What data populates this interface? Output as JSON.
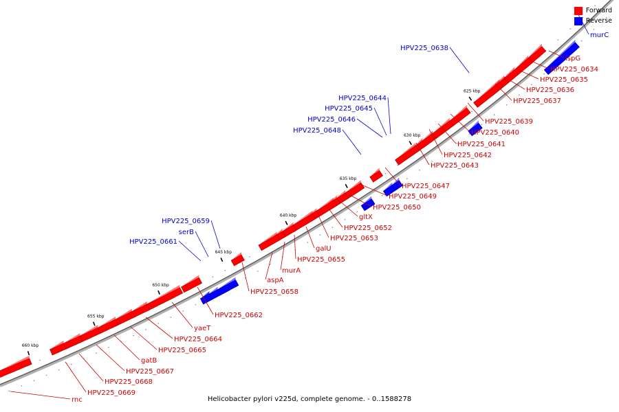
{
  "caption": "Helicobacter pylori v225d, complete genome. - 0..1588278",
  "legend": {
    "forward": {
      "label": "Forward",
      "color": "#ff0000"
    },
    "reverse": {
      "label": "Reverse",
      "color": "#0000ff"
    }
  },
  "ticks": [
    "625 kbp",
    "630 kbp",
    "635 kbp",
    "640 kbp",
    "645 kbp",
    "650 kbp",
    "655 kbp",
    "660 kbp"
  ],
  "forward_genes": [
    "ispG",
    "HPV225_0634",
    "HPV225_0635",
    "HPV225_0636",
    "HPV225_0637",
    "HPV225_0639",
    "HPV225_0640",
    "HPV225_0641",
    "HPV225_0642",
    "HPV225_0643",
    "HPV225_0647",
    "HPV225_0649",
    "HPV225_0650",
    "gltX",
    "HPV225_0652",
    "HPV225_0653",
    "galU",
    "HPV225_0655",
    "murA",
    "aspA",
    "HPV225_0658",
    "HPV225_0662",
    "yaeT",
    "HPV225_0664",
    "HPV225_0665",
    "gatB",
    "HPV225_0667",
    "HPV225_0668",
    "HPV225_0669",
    "rnc"
  ],
  "reverse_genes": [
    "murC",
    "HPV225_0638",
    "HPV225_0644",
    "HPV225_0645",
    "HPV225_0646",
    "HPV225_0648",
    "HPV225_0659",
    "serB",
    "HPV225_0661"
  ]
}
